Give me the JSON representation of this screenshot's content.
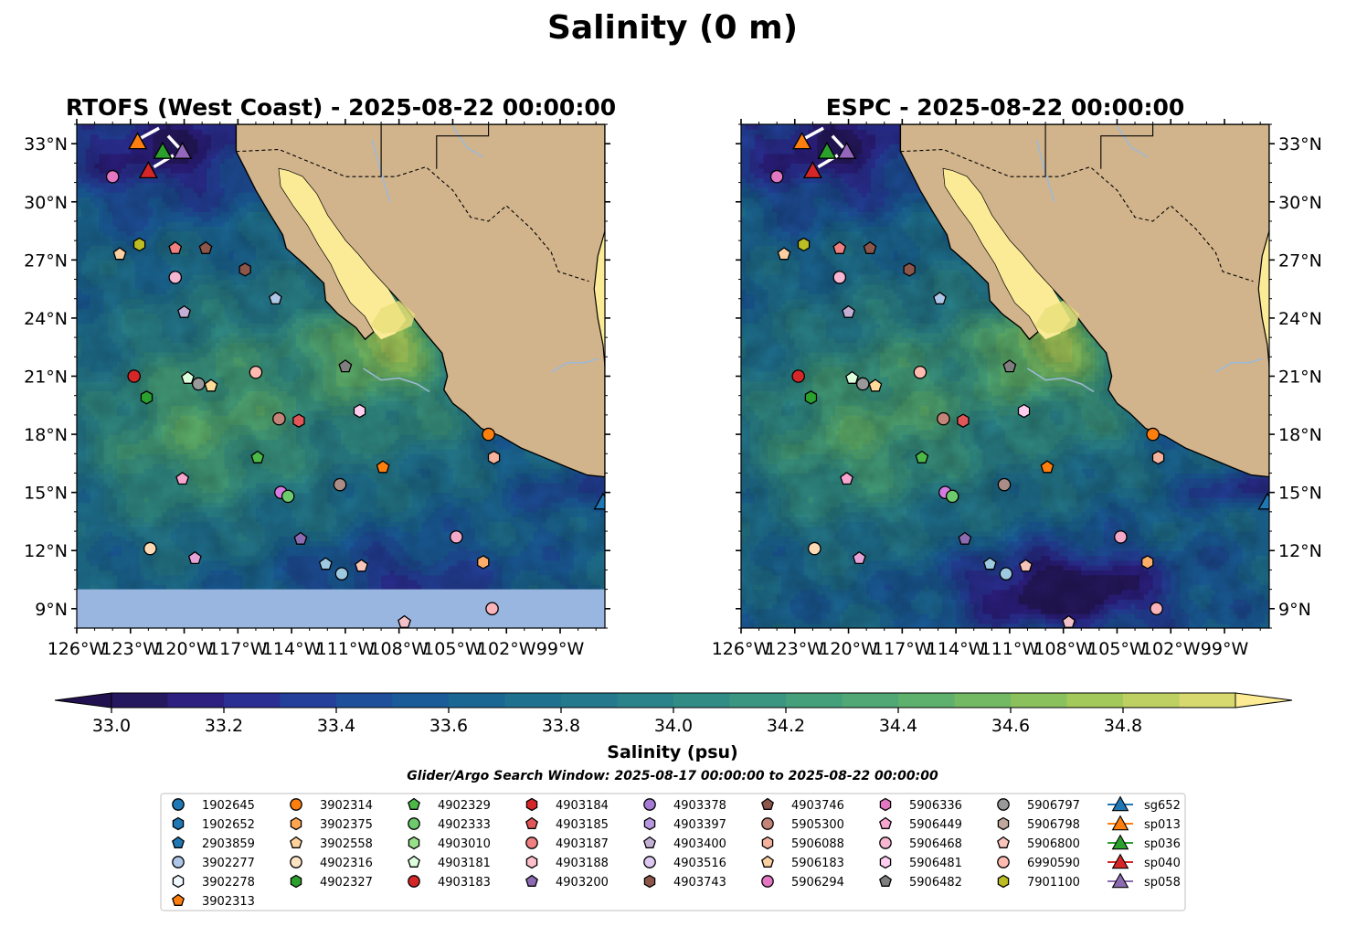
{
  "figure": {
    "suptitle": "Salinity (0 m)",
    "search_window": "Glider/Argo Search Window: 2025-08-17 00:00:00 to 2025-08-22 00:00:00"
  },
  "chart_data": [
    {
      "type": "heatmap",
      "panel": "left",
      "title": "RTOFS (West Coast) - 2025-08-22 00:00:00",
      "lon_range": [
        -126,
        -96.5
      ],
      "lat_range": [
        8,
        34
      ],
      "lat_ticks": [
        "9°N",
        "12°N",
        "15°N",
        "18°N",
        "21°N",
        "24°N",
        "27°N",
        "30°N",
        "33°N"
      ],
      "lon_ticks": [
        "126°W",
        "123°W",
        "120°W",
        "117°W",
        "114°W",
        "111°W",
        "108°W",
        "105°W",
        "102°W",
        "99°W"
      ],
      "lat_axis_side": "left",
      "no_data_band_below_lat": 10,
      "variable": "sea surface salinity (psu)"
    },
    {
      "type": "heatmap",
      "panel": "right",
      "title": "ESPC - 2025-08-22 00:00:00",
      "lon_range": [
        -126,
        -96.5
      ],
      "lat_range": [
        8,
        34
      ],
      "lat_ticks": [
        "9°N",
        "12°N",
        "15°N",
        "18°N",
        "21°N",
        "24°N",
        "27°N",
        "30°N",
        "33°N"
      ],
      "lon_ticks": [
        "126°W",
        "123°W",
        "120°W",
        "117°W",
        "114°W",
        "111°W",
        "108°W",
        "105°W",
        "102°W",
        "99°W"
      ],
      "lat_axis_side": "right",
      "no_data_band_below_lat": null,
      "variable": "sea surface salinity (psu)"
    }
  ],
  "colorbar": {
    "label": "Salinity (psu)",
    "min": 32.9,
    "max": 34.9,
    "step": 0.1,
    "ticks": [
      "33.0",
      "33.2",
      "33.4",
      "33.6",
      "33.8",
      "34.0",
      "34.2",
      "34.4",
      "34.6",
      "34.8"
    ],
    "extend": "both",
    "colors": [
      "#26185f",
      "#2c1f80",
      "#2b2f93",
      "#24409a",
      "#1e4f9a",
      "#1a5c99",
      "#1b6794",
      "#1f7190",
      "#24798d",
      "#2a828a",
      "#318c86",
      "#3a9581",
      "#449f7b",
      "#51a874",
      "#5eb16c",
      "#73b964",
      "#8ac15d",
      "#a3c95a",
      "#bed062",
      "#d7d86d"
    ],
    "extend_low_color": "#221150",
    "extend_high_color": "#fdec94"
  },
  "map_colors": {
    "land": "#d2b48c",
    "gulf": "#fbeb97",
    "mask": "#98b6e0",
    "river": "#9db9d6"
  },
  "markers": [
    {
      "id": "sp013",
      "lon": -122.6,
      "lat": 33.1,
      "shape": "triangle",
      "color": "#ff7f0e"
    },
    {
      "id": "sp036",
      "lon": -121.2,
      "lat": 32.6,
      "shape": "triangle",
      "color": "#2ca02c"
    },
    {
      "id": "sp058",
      "lon": -120.1,
      "lat": 32.6,
      "shape": "triangle",
      "color": "#9467bd"
    },
    {
      "id": "sp040",
      "lon": -122.0,
      "lat": 31.6,
      "shape": "triangle",
      "color": "#d62728"
    },
    {
      "id": "sg652",
      "lon": -96.6,
      "lat": 14.5,
      "shape": "triangle",
      "color": "#1f77b4"
    },
    {
      "id": "5906294",
      "lon": -124.0,
      "lat": 31.3,
      "shape": "circle",
      "color": "#e377c2"
    },
    {
      "id": "7901100",
      "lon": -122.5,
      "lat": 27.8,
      "shape": "hexagon",
      "color": "#bcbd22"
    },
    {
      "id": "5906183",
      "lon": -123.6,
      "lat": 27.3,
      "shape": "pentagon",
      "color": "#fdd0a2"
    },
    {
      "id": "4903187",
      "lon": -120.5,
      "lat": 27.6,
      "shape": "pentagon",
      "color": "#f08080"
    },
    {
      "id": "4903746",
      "lon": -118.8,
      "lat": 27.6,
      "shape": "pentagon",
      "color": "#8c564b"
    },
    {
      "id": "4903743",
      "lon": -116.6,
      "lat": 26.5,
      "shape": "hexagon",
      "color": "#8c564b"
    },
    {
      "id": "5906468",
      "lon": -120.5,
      "lat": 26.1,
      "shape": "circle",
      "color": "#f7b6d2"
    },
    {
      "id": "2903859",
      "lon": -114.9,
      "lat": 25.0,
      "shape": "pentagon",
      "color": "#aec7e8"
    },
    {
      "id": "4903400",
      "lon": -120.0,
      "lat": 24.3,
      "shape": "pentagon",
      "color": "#c5b0d5"
    },
    {
      "id": "4903183",
      "lon": -122.8,
      "lat": 21.0,
      "shape": "circle",
      "color": "#d62728"
    },
    {
      "id": "4902327",
      "lon": -122.1,
      "lat": 19.9,
      "shape": "hexagon",
      "color": "#2ca02c"
    },
    {
      "id": "4903181",
      "lon": -119.8,
      "lat": 20.9,
      "shape": "pentagon",
      "color": "#ddffdd"
    },
    {
      "id": "5906797",
      "lon": -119.2,
      "lat": 20.6,
      "shape": "circle",
      "color": "#999999"
    },
    {
      "id": "3902558",
      "lon": -118.5,
      "lat": 20.5,
      "shape": "pentagon",
      "color": "#ffdb9a"
    },
    {
      "id": "6990590",
      "lon": -116.0,
      "lat": 21.2,
      "shape": "circle",
      "color": "#ffbbb0"
    },
    {
      "id": "5906482",
      "lon": -111.0,
      "lat": 21.5,
      "shape": "pentagon",
      "color": "#7f7f7f"
    },
    {
      "id": "5905300",
      "lon": -114.7,
      "lat": 18.8,
      "shape": "circle",
      "color": "#c48478"
    },
    {
      "id": "4903185",
      "lon": -113.6,
      "lat": 18.7,
      "shape": "hexagon",
      "color": "#e15759"
    },
    {
      "id": "5906481",
      "lon": -110.2,
      "lat": 19.2,
      "shape": "hexagon",
      "color": "#ffcdf0"
    },
    {
      "id": "3902314",
      "lon": -103.0,
      "lat": 18.0,
      "shape": "circle",
      "color": "#ff7f0e"
    },
    {
      "id": "5906088",
      "lon": -102.7,
      "lat": 16.8,
      "shape": "hexagon",
      "color": "#f5b39e"
    },
    {
      "id": "4902329",
      "lon": -115.9,
      "lat": 16.8,
      "shape": "pentagon",
      "color": "#4cb848"
    },
    {
      "id": "3902313",
      "lon": -108.9,
      "lat": 16.3,
      "shape": "pentagon",
      "color": "#ff7f0e"
    },
    {
      "id": "5906336",
      "lon": -120.1,
      "lat": 15.7,
      "shape": "pentagon",
      "color": "#f7a6d0"
    },
    {
      "id": "5906798",
      "lon": -111.3,
      "lat": 15.4,
      "shape": "circle",
      "color": "#a98d86"
    },
    {
      "id": "5906449",
      "lon": -114.6,
      "lat": 15.0,
      "shape": "circle",
      "color": "#d67be2"
    },
    {
      "id": "4902333",
      "lon": -114.2,
      "lat": 14.8,
      "shape": "circle",
      "color": "#6dca6d"
    },
    {
      "id": "4903200",
      "lon": -113.5,
      "lat": 12.6,
      "shape": "pentagon",
      "color": "#8c6bb1"
    },
    {
      "id": "4903516",
      "lon": -112.1,
      "lat": 11.3,
      "shape": "pentagon",
      "color": "#9ecae1"
    },
    {
      "id": "3902277",
      "lon": -111.2,
      "lat": 10.8,
      "shape": "circle",
      "color": "#9ecae1"
    },
    {
      "id": "5906800",
      "lon": -110.1,
      "lat": 11.2,
      "shape": "pentagon",
      "color": "#f8c5bb"
    },
    {
      "id": "4903397",
      "lon": -104.8,
      "lat": 12.7,
      "shape": "circle",
      "color": "#f5a9c8"
    },
    {
      "id": "3902375",
      "lon": -103.3,
      "lat": 11.4,
      "shape": "hexagon",
      "color": "#fdae6b"
    },
    {
      "id": "4903188",
      "lon": -102.8,
      "lat": 9.0,
      "shape": "circle",
      "color": "#fbb4b9"
    },
    {
      "id": "4902316",
      "lon": -121.9,
      "lat": 12.1,
      "shape": "circle",
      "color": "#fdd9b5"
    },
    {
      "id": "4903378",
      "lon": -119.4,
      "lat": 11.6,
      "shape": "pentagon",
      "color": "#e5a3d8"
    },
    {
      "id": "4903010",
      "lon": -107.7,
      "lat": 8.3,
      "shape": "pentagon",
      "color": "#f2c1c9"
    }
  ],
  "legend": {
    "columns": [
      [
        {
          "label": "1902645",
          "shape": "circle",
          "color": "#1f77b4"
        },
        {
          "label": "1902652",
          "shape": "hexagon",
          "color": "#1f77b4"
        },
        {
          "label": "2903859",
          "shape": "pentagon",
          "color": "#1f77b4"
        },
        {
          "label": "3902277",
          "shape": "circle",
          "color": "#aec7e8"
        },
        {
          "label": "3902278",
          "shape": "hexagon",
          "color": "#f0f8ff"
        },
        {
          "label": "3902313",
          "shape": "pentagon",
          "color": "#ff7f0e"
        }
      ],
      [
        {
          "label": "3902314",
          "shape": "circle",
          "color": "#ff7f0e"
        },
        {
          "label": "3902375",
          "shape": "hexagon",
          "color": "#ffa54f"
        },
        {
          "label": "3902558",
          "shape": "pentagon",
          "color": "#ffd39b"
        },
        {
          "label": "4902316",
          "shape": "circle",
          "color": "#ffe4c4"
        },
        {
          "label": "4902327",
          "shape": "hexagon",
          "color": "#2ca02c"
        }
      ],
      [
        {
          "label": "4902329",
          "shape": "pentagon",
          "color": "#4cb848"
        },
        {
          "label": "4902333",
          "shape": "circle",
          "color": "#6dca6d"
        },
        {
          "label": "4903010",
          "shape": "hexagon",
          "color": "#98df8a"
        },
        {
          "label": "4903181",
          "shape": "pentagon",
          "color": "#ddffdd"
        },
        {
          "label": "4903183",
          "shape": "circle",
          "color": "#d62728"
        }
      ],
      [
        {
          "label": "4903184",
          "shape": "hexagon",
          "color": "#d62728"
        },
        {
          "label": "4903185",
          "shape": "pentagon",
          "color": "#e15759"
        },
        {
          "label": "4903187",
          "shape": "circle",
          "color": "#f08080"
        },
        {
          "label": "4903188",
          "shape": "hexagon",
          "color": "#ffc0cb"
        },
        {
          "label": "4903200",
          "shape": "pentagon",
          "color": "#8c6bb1"
        }
      ],
      [
        {
          "label": "4903378",
          "shape": "circle",
          "color": "#a57bd6"
        },
        {
          "label": "4903397",
          "shape": "hexagon",
          "color": "#b896e0"
        },
        {
          "label": "4903400",
          "shape": "pentagon",
          "color": "#c5b0d5"
        },
        {
          "label": "4903516",
          "shape": "circle",
          "color": "#dcc8f0"
        },
        {
          "label": "4903743",
          "shape": "hexagon",
          "color": "#8c564b"
        }
      ],
      [
        {
          "label": "4903746",
          "shape": "pentagon",
          "color": "#8c564b"
        },
        {
          "label": "5905300",
          "shape": "circle",
          "color": "#c48478"
        },
        {
          "label": "5906088",
          "shape": "hexagon",
          "color": "#f5b39e"
        },
        {
          "label": "5906183",
          "shape": "pentagon",
          "color": "#fdd0a2"
        },
        {
          "label": "5906294",
          "shape": "circle",
          "color": "#e377c2"
        }
      ],
      [
        {
          "label": "5906336",
          "shape": "hexagon",
          "color": "#e377c2"
        },
        {
          "label": "5906449",
          "shape": "pentagon",
          "color": "#f7a6d0"
        },
        {
          "label": "5906468",
          "shape": "circle",
          "color": "#f7b6d2"
        },
        {
          "label": "5906481",
          "shape": "hexagon",
          "color": "#ffcdf0"
        },
        {
          "label": "5906482",
          "shape": "pentagon",
          "color": "#7f7f7f"
        }
      ],
      [
        {
          "label": "5906797",
          "shape": "circle",
          "color": "#999999"
        },
        {
          "label": "5906798",
          "shape": "hexagon",
          "color": "#c0a89f"
        },
        {
          "label": "5906800",
          "shape": "pentagon",
          "color": "#f8c5bb"
        },
        {
          "label": "6990590",
          "shape": "circle",
          "color": "#ffbbb0"
        },
        {
          "label": "7901100",
          "shape": "hexagon",
          "color": "#bcbd22"
        }
      ],
      [
        {
          "label": "sg652",
          "shape": "triangle-line",
          "color": "#1f77b4"
        },
        {
          "label": "sp013",
          "shape": "triangle-line",
          "color": "#ff7f0e"
        },
        {
          "label": "sp036",
          "shape": "triangle-line",
          "color": "#2ca02c"
        },
        {
          "label": "sp040",
          "shape": "triangle-line",
          "color": "#d62728"
        },
        {
          "label": "sp058",
          "shape": "triangle-line",
          "color": "#8c6bb1"
        }
      ]
    ]
  }
}
